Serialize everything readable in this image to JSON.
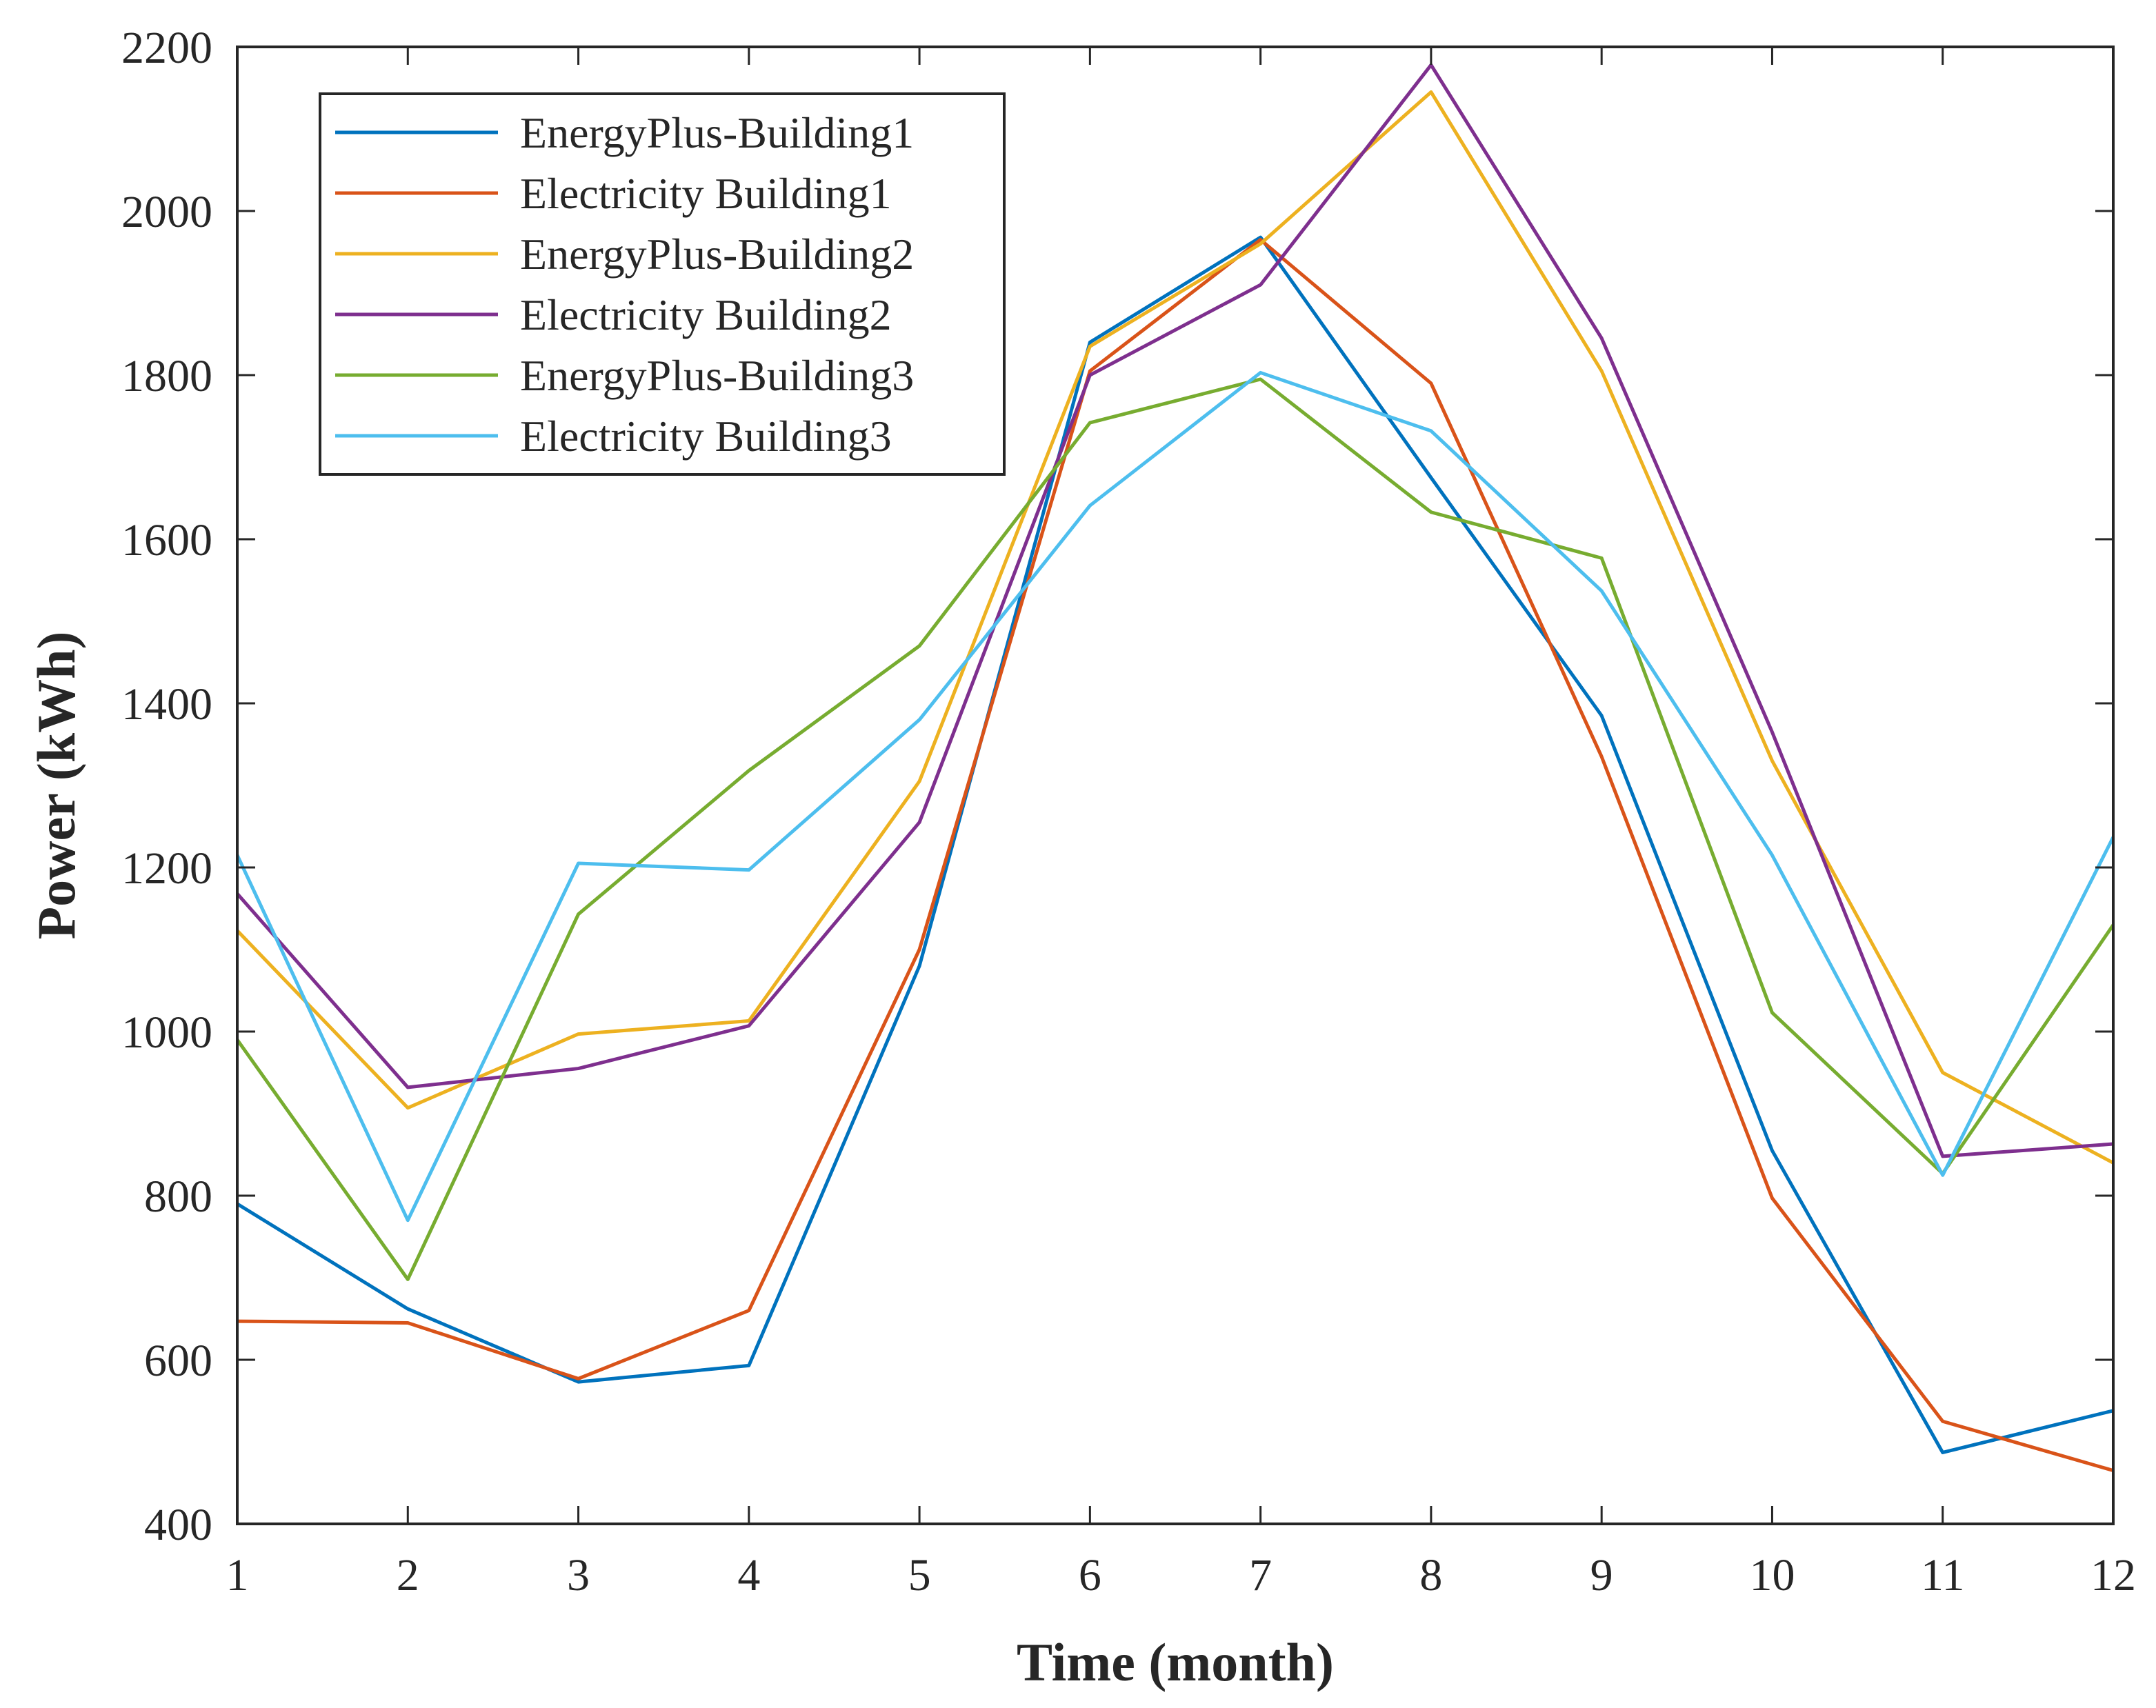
{
  "chart_data": {
    "type": "line",
    "title": "",
    "xlabel": "Time (month)",
    "ylabel": "Power (kWh)",
    "xlim": [
      1,
      12
    ],
    "ylim": [
      400,
      2200
    ],
    "xticks": [
      1,
      2,
      3,
      4,
      5,
      6,
      7,
      8,
      9,
      10,
      11,
      12
    ],
    "yticks": [
      400,
      600,
      800,
      1000,
      1200,
      1400,
      1600,
      1800,
      2000,
      2200
    ],
    "grid": false,
    "legend_position": "top-left",
    "x": [
      1,
      2,
      3,
      4,
      5,
      6,
      7,
      8,
      9,
      10,
      11,
      12
    ],
    "series": [
      {
        "name": "EnergyPlus-Building1",
        "color": "#0072BD",
        "values": [
          790,
          662,
          573,
          593,
          1080,
          1840,
          1968,
          1675,
          1385,
          855,
          487,
          538
        ]
      },
      {
        "name": "Electricity Building1",
        "color": "#D95319",
        "values": [
          647,
          645,
          577,
          660,
          1100,
          1805,
          1965,
          1790,
          1335,
          797,
          525,
          465
        ]
      },
      {
        "name": "EnergyPlus-Building2",
        "color": "#EDB120",
        "values": [
          1123,
          907,
          997,
          1013,
          1305,
          1835,
          1960,
          2145,
          1805,
          1330,
          950,
          840
        ]
      },
      {
        "name": "Electricity Building2",
        "color": "#7E2F8E",
        "values": [
          1168,
          932,
          955,
          1007,
          1255,
          1800,
          1910,
          2178,
          1845,
          1365,
          848,
          863
        ]
      },
      {
        "name": "EnergyPlus-Building3",
        "color": "#77AC30",
        "values": [
          990,
          698,
          1143,
          1318,
          1470,
          1742,
          1795,
          1633,
          1577,
          1023,
          827,
          1130
        ]
      },
      {
        "name": "Electricity Building3",
        "color": "#4DBEEE",
        "values": [
          1215,
          770,
          1205,
          1197,
          1380,
          1641,
          1803,
          1732,
          1537,
          1215,
          825,
          1237
        ]
      }
    ]
  }
}
